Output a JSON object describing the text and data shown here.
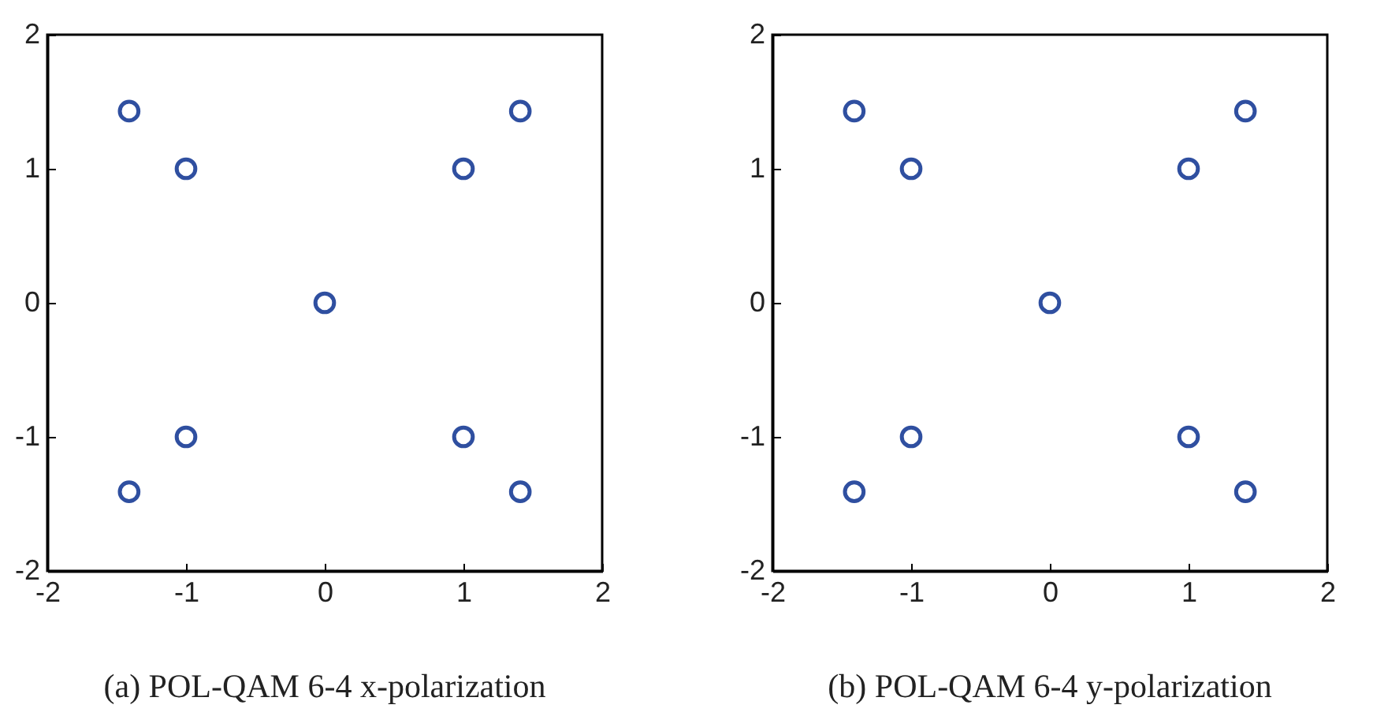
{
  "chart_data": [
    {
      "type": "scatter",
      "title": "(a) POL-QAM 6-4 x-polarization",
      "x": [
        -1.41,
        -1,
        1,
        1.41,
        0,
        -1.41,
        -1,
        1,
        1.41
      ],
      "series": [
        {
          "color": "#2f4fa0",
          "values": [
            1.43,
            1,
            1,
            1.43,
            0,
            -1.41,
            -1,
            -1,
            -1.41
          ]
        }
      ],
      "xlim": [
        -2,
        2
      ],
      "ylim": [
        -2,
        2
      ],
      "xticks": [
        -2,
        -1,
        0,
        1,
        2
      ],
      "yticks": [
        -2,
        -1,
        0,
        1,
        2
      ],
      "marker": "circle",
      "grid": false
    },
    {
      "type": "scatter",
      "title": "(b) POL-QAM 6-4 y-polarization",
      "x": [
        -1.41,
        -1,
        1,
        1.41,
        0,
        -1.41,
        -1,
        1,
        1.41
      ],
      "series": [
        {
          "color": "#2f4fa0",
          "values": [
            1.43,
            1,
            1,
            1.43,
            0,
            -1.41,
            -1,
            -1,
            -1.41
          ]
        }
      ],
      "xlim": [
        -2,
        2
      ],
      "ylim": [
        -2,
        2
      ],
      "xticks": [
        -2,
        -1,
        0,
        1,
        2
      ],
      "yticks": [
        -2,
        -1,
        0,
        1,
        2
      ],
      "marker": "circle",
      "grid": false
    }
  ]
}
